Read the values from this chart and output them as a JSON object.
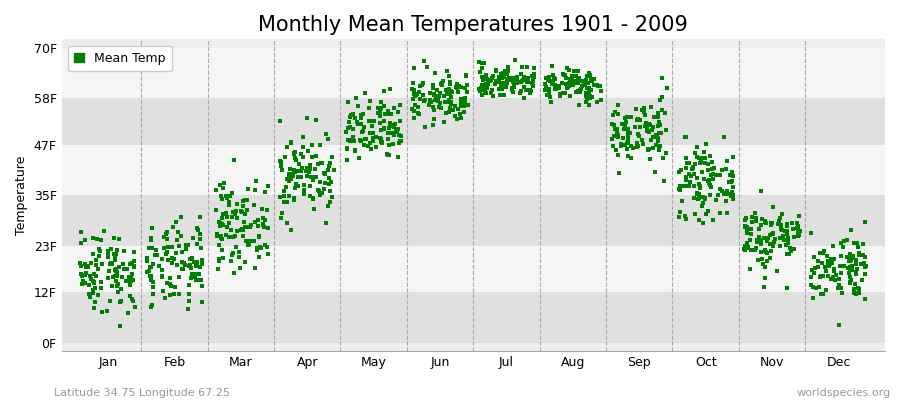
{
  "title": "Monthly Mean Temperatures 1901 - 2009",
  "ylabel": "Temperature",
  "xlabel_bottom_left": "Latitude 34.75 Longitude 67.25",
  "xlabel_bottom_right": "worldspecies.org",
  "ytick_values": [
    0,
    12,
    23,
    35,
    47,
    58,
    70
  ],
  "ytick_labels": [
    "0F",
    "12F",
    "23F",
    "35F",
    "47F",
    "58F",
    "70F"
  ],
  "months": [
    "Jan",
    "Feb",
    "Mar",
    "Apr",
    "May",
    "Jun",
    "Jul",
    "Aug",
    "Sep",
    "Oct",
    "Nov",
    "Dec"
  ],
  "dot_color": "#008000",
  "background_color": "#ffffff",
  "plot_bg_color": "#eeeeee",
  "alt_band_color": "#e0e0e0",
  "white_band_color": "#f5f5f5",
  "title_fontsize": 15,
  "axis_fontsize": 9,
  "legend_fontsize": 9,
  "monthly_means": [
    17,
    18,
    28,
    40,
    50,
    58,
    62,
    61,
    50,
    38,
    25,
    18
  ],
  "monthly_stds": [
    5,
    5,
    5,
    5,
    4,
    3,
    2,
    2,
    4,
    4,
    4,
    4
  ],
  "n_years": 109,
  "seed": 42,
  "ylim_min": -2,
  "ylim_max": 72,
  "xlim_min": 0.3,
  "xlim_max": 12.7
}
